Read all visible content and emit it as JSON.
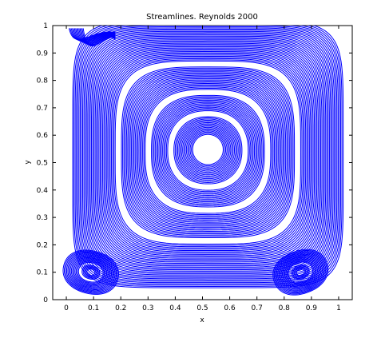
{
  "chart_data": {
    "type": "line",
    "title": "Streamlines. Reynolds 2000",
    "xlabel": "x",
    "ylabel": "y",
    "xlim": [
      -0.05,
      1.05
    ],
    "ylim": [
      0,
      1
    ],
    "xticks": [
      "0",
      "0.1",
      "0.2",
      "0.3",
      "0.4",
      "0.5",
      "0.6",
      "0.7",
      "0.8",
      "0.9",
      "1"
    ],
    "yticks": [
      "0",
      "0.1",
      "0.2",
      "0.3",
      "0.4",
      "0.5",
      "0.6",
      "0.7",
      "0.8",
      "0.9",
      "1"
    ],
    "grid": false,
    "series": [
      {
        "kind": "primary-vortex",
        "center": [
          0.52,
          0.55
        ],
        "color": "#0000ff"
      },
      {
        "kind": "bottom-left-vortex",
        "center": [
          0.09,
          0.1
        ],
        "color": "#0000ff"
      },
      {
        "kind": "bottom-right-vortex",
        "center": [
          0.86,
          0.1
        ],
        "color": "#0000ff"
      }
    ],
    "background": "#ffffff"
  }
}
